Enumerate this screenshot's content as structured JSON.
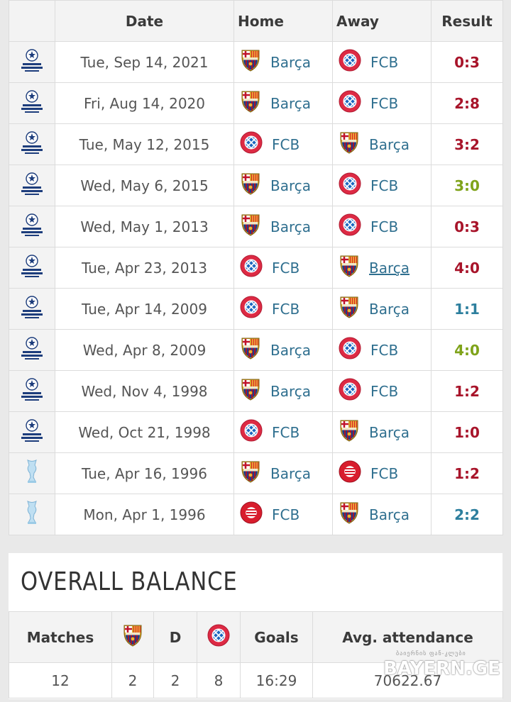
{
  "colors": {
    "loss_red": "#a8142a",
    "win_green": "#7fa31a",
    "draw_teal": "#2d7f9e",
    "link_blue": "#2f6f8f"
  },
  "table": {
    "headers": {
      "date": "Date",
      "home": "Home",
      "away": "Away",
      "result": "Result"
    },
    "rows": [
      {
        "competition_icon": "champions-league-icon",
        "date": "Tue, Sep 14, 2021",
        "home": "Barça",
        "home_crest": "barca-crest-icon",
        "away": "FCB",
        "away_crest": "bayern-crest-icon",
        "result": "0:3",
        "result_color": "#a8142a"
      },
      {
        "competition_icon": "champions-league-icon",
        "date": "Fri, Aug 14, 2020",
        "home": "Barça",
        "home_crest": "barca-crest-icon",
        "away": "FCB",
        "away_crest": "bayern-crest-icon",
        "result": "2:8",
        "result_color": "#a8142a"
      },
      {
        "competition_icon": "champions-league-icon",
        "date": "Tue, May 12, 2015",
        "home": "FCB",
        "home_crest": "bayern-crest-icon",
        "away": "Barça",
        "away_crest": "barca-crest-icon",
        "result": "3:2",
        "result_color": "#a8142a"
      },
      {
        "competition_icon": "champions-league-icon",
        "date": "Wed, May 6, 2015",
        "home": "Barça",
        "home_crest": "barca-crest-icon",
        "away": "FCB",
        "away_crest": "bayern-crest-icon",
        "result": "3:0",
        "result_color": "#7fa31a"
      },
      {
        "competition_icon": "champions-league-icon",
        "date": "Wed, May 1, 2013",
        "home": "Barça",
        "home_crest": "barca-crest-icon",
        "away": "FCB",
        "away_crest": "bayern-crest-icon",
        "result": "0:3",
        "result_color": "#a8142a"
      },
      {
        "competition_icon": "champions-league-icon",
        "date": "Tue, Apr 23, 2013",
        "home": "FCB",
        "home_crest": "bayern-crest-icon",
        "away": "Barça",
        "away_crest": "barca-crest-icon",
        "away_underline": true,
        "result": "4:0",
        "result_color": "#a8142a"
      },
      {
        "competition_icon": "champions-league-icon",
        "date": "Tue, Apr 14, 2009",
        "home": "FCB",
        "home_crest": "bayern-crest-icon",
        "away": "Barça",
        "away_crest": "barca-crest-icon",
        "result": "1:1",
        "result_color": "#2d7f9e"
      },
      {
        "competition_icon": "champions-league-icon",
        "date": "Wed, Apr 8, 2009",
        "home": "Barça",
        "home_crest": "barca-crest-icon",
        "away": "FCB",
        "away_crest": "bayern-crest-icon",
        "result": "4:0",
        "result_color": "#7fa31a"
      },
      {
        "competition_icon": "champions-league-icon",
        "date": "Wed, Nov 4, 1998",
        "home": "Barça",
        "home_crest": "barca-old-crest-icon",
        "away": "FCB",
        "away_crest": "bayern-old-crest-icon",
        "result": "1:2",
        "result_color": "#a8142a"
      },
      {
        "competition_icon": "champions-league-icon",
        "date": "Wed, Oct 21, 1998",
        "home": "FCB",
        "home_crest": "bayern-old-crest-icon",
        "away": "Barça",
        "away_crest": "barca-old-crest-icon",
        "result": "1:0",
        "result_color": "#a8142a"
      },
      {
        "competition_icon": "uefa-cup-trophy-icon",
        "date": "Tue, Apr 16, 1996",
        "home": "Barça",
        "home_crest": "barca-old-crest-icon",
        "away": "FCB",
        "away_crest": "bayern-red-crest-icon",
        "result": "1:2",
        "result_color": "#a8142a"
      },
      {
        "competition_icon": "uefa-cup-trophy-icon",
        "date": "Mon, Apr 1, 1996",
        "home": "FCB",
        "home_crest": "bayern-red-crest-icon",
        "away": "Barça",
        "away_crest": "barca-old-crest-icon",
        "result": "2:2",
        "result_color": "#2d7f9e"
      }
    ]
  },
  "balance": {
    "title": "OVERALL BALANCE",
    "headers": {
      "matches": "Matches",
      "barca_icon": "barca-crest-icon",
      "draws": "D",
      "bayern_icon": "bayern-crest-icon",
      "goals": "Goals",
      "attendance": "Avg. attendance"
    },
    "values": {
      "matches": "12",
      "barca_wins": "2",
      "draws": "2",
      "bayern_wins": "8",
      "goals": "16:29",
      "attendance": "70622.67"
    }
  },
  "watermark": {
    "text": "BAYERN.GE",
    "subtext": "ბაიერნის ფან-კლუბი"
  }
}
